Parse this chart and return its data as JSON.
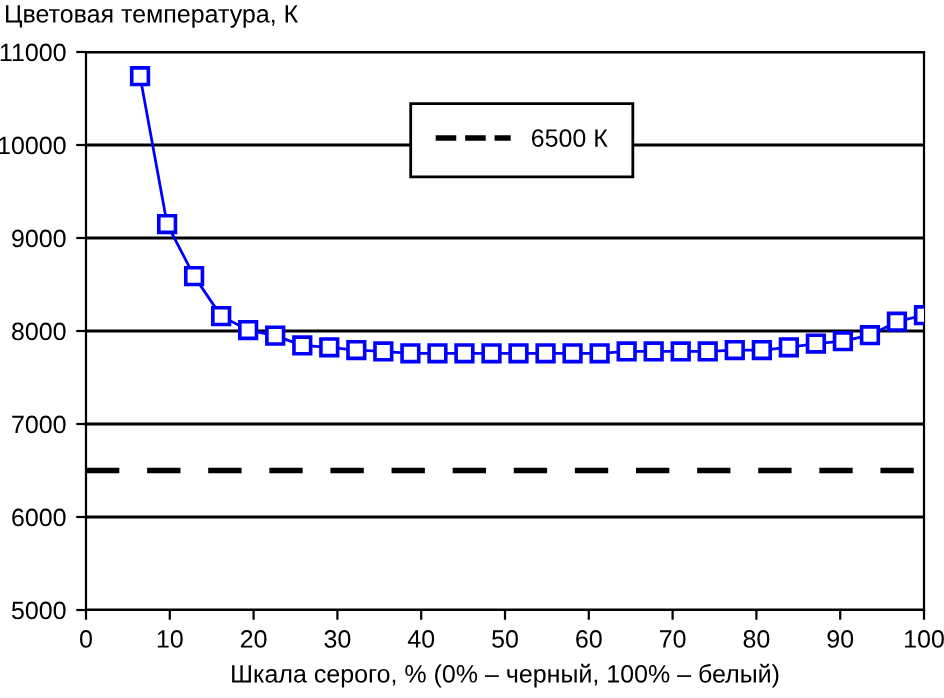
{
  "chart_data": {
    "type": "line",
    "ylabel": "Цветовая температура, К",
    "xlabel": "Шкала серого, % (0% – черный, 100% – белый)",
    "series": [
      {
        "color": "#0000ff",
        "x": [
          6.45,
          9.68,
          12.9,
          16.13,
          19.35,
          22.58,
          25.81,
          29.03,
          32.26,
          35.48,
          38.71,
          41.94,
          45.16,
          48.39,
          51.61,
          54.84,
          58.06,
          61.29,
          64.52,
          67.74,
          70.97,
          74.19,
          77.42,
          80.65,
          83.87,
          87.1,
          90.32,
          93.55,
          96.77,
          100
        ],
        "values": [
          10740,
          9150,
          8590,
          8160,
          8010,
          7950,
          7845,
          7825,
          7795,
          7780,
          7760,
          7760,
          7760,
          7760,
          7760,
          7760,
          7760,
          7760,
          7780,
          7780,
          7780,
          7780,
          7795,
          7795,
          7825,
          7865,
          7890,
          7955,
          8100,
          8170
        ]
      }
    ],
    "ref_lines": [
      {
        "axis": "y",
        "value": 6500,
        "label": "6500 К",
        "color": "#000000",
        "line_style": "dashed"
      }
    ],
    "xlim": [
      0,
      100
    ],
    "xticks": [
      0,
      10,
      20,
      30,
      40,
      50,
      60,
      70,
      80,
      90,
      100
    ],
    "ylim": [
      5000,
      11000
    ],
    "yticks": [
      5000,
      6000,
      7000,
      8000,
      9000,
      10000,
      11000
    ],
    "grid": "y",
    "legend": "top",
    "marker": "square",
    "line_style": "solid"
  }
}
